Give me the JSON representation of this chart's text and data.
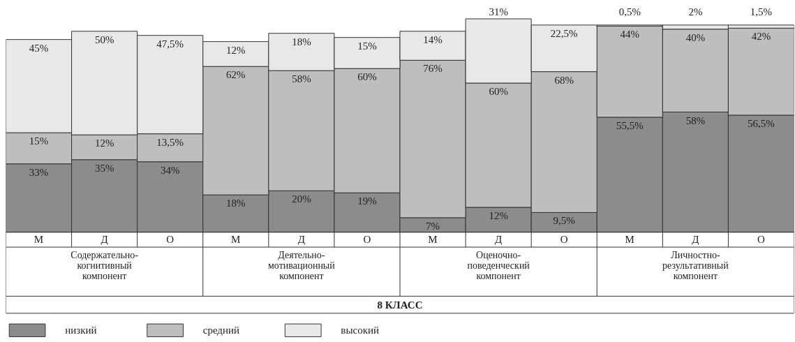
{
  "chart_data": {
    "type": "bar",
    "stacked": true,
    "legend": "bottom",
    "grid": false,
    "categories": [
      "М",
      "Д",
      "О",
      "М",
      "Д",
      "О",
      "М",
      "Д",
      "О",
      "М",
      "Д",
      "О"
    ],
    "annotations": [
      "Содержательно-\nкогнитивный\nкомпонент",
      "Деятельно-\nмотивационный\nкомпонент",
      "Оценочно-\nповеденческий\nкомпонент",
      "Личностно-\nрезультативный\nкомпонент",
      "8 КЛАСС"
    ],
    "series": [
      {
        "name": "низкий",
        "color": "#8c8c8c",
        "values": [
          33,
          35,
          34,
          18,
          20,
          19,
          7,
          12,
          9.5,
          55.5,
          58,
          56.5
        ],
        "value_labels": [
          "33%",
          "35%",
          "34%",
          "18%",
          "20%",
          "19%",
          "7%",
          "12%",
          "9,5%",
          "55,5%",
          "58%",
          "56,5%"
        ]
      },
      {
        "name": "средний",
        "color": "#bebebe",
        "values": [
          15,
          12,
          13.5,
          62,
          58,
          60,
          76,
          60,
          68,
          44,
          40,
          42
        ],
        "value_labels": [
          "15%",
          "12%",
          "13,5%",
          "62%",
          "58%",
          "60%",
          "76%",
          "60%",
          "68%",
          "44%",
          "40%",
          "42%"
        ]
      },
      {
        "name": "высокий",
        "color": "#e8e8e8",
        "values": [
          45,
          50,
          47.5,
          12,
          18,
          15,
          14,
          31,
          22.5,
          0.5,
          2,
          1.5
        ],
        "value_labels": [
          "45%",
          "50%",
          "47,5%",
          "12%",
          "18%",
          "15%",
          "14%",
          "31%",
          "22,5%",
          "0,5%",
          "2%",
          "1,5%"
        ]
      }
    ]
  }
}
